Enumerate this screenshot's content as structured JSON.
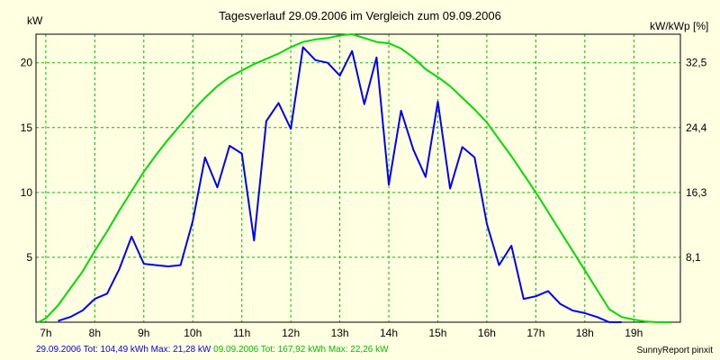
{
  "chart_data": {
    "type": "line",
    "title": "Tagesverlauf 29.09.2006 im Vergleich zum 09.09.2006",
    "ylabel_left": "kW",
    "ylabel_right": "kW/kWp [%]",
    "x_ticks": [
      "7h",
      "8h",
      "9h",
      "10h",
      "11h",
      "12h",
      "13h",
      "14h",
      "15h",
      "16h",
      "17h",
      "18h",
      "19h"
    ],
    "y_left_ticks": [
      "5",
      "10",
      "15",
      "20"
    ],
    "y_right_ticks": [
      "8,1",
      "16,3",
      "24,4",
      "32,5"
    ],
    "xlim": [
      6.8,
      19.95
    ],
    "ylim": [
      0,
      22.2
    ],
    "grid": true,
    "series": [
      {
        "name": "29.09.2006",
        "color": "#0000ff",
        "x": [
          7.25,
          7.5,
          7.75,
          8.0,
          8.25,
          8.5,
          8.75,
          9.0,
          9.25,
          9.5,
          9.75,
          10.0,
          10.25,
          10.5,
          10.75,
          11.0,
          11.25,
          11.5,
          11.75,
          12.0,
          12.25,
          12.5,
          12.75,
          13.0,
          13.25,
          13.5,
          13.75,
          14.0,
          14.25,
          14.5,
          14.75,
          15.0,
          15.25,
          15.5,
          15.75,
          16.0,
          16.25,
          16.5,
          16.75,
          17.0,
          17.25,
          17.5,
          17.75,
          18.0,
          18.25,
          18.5,
          18.75
        ],
        "values": [
          0.1,
          0.4,
          0.9,
          1.8,
          2.2,
          4.1,
          6.6,
          4.5,
          4.4,
          4.3,
          4.4,
          7.8,
          12.7,
          10.4,
          13.6,
          13.0,
          6.3,
          15.5,
          16.9,
          14.9,
          21.2,
          20.2,
          20.0,
          19.0,
          20.9,
          16.8,
          20.4,
          10.6,
          16.3,
          13.3,
          11.2,
          17.0,
          10.3,
          13.5,
          12.7,
          7.6,
          4.4,
          5.9,
          1.8,
          2.0,
          2.4,
          1.4,
          0.9,
          0.7,
          0.4,
          0.0,
          0.0
        ]
      },
      {
        "name": "09.09.2006",
        "color": "#00dd00",
        "x": [
          6.85,
          7.0,
          7.25,
          7.5,
          7.75,
          8.0,
          8.25,
          8.5,
          8.75,
          9.0,
          9.25,
          9.5,
          9.75,
          10.0,
          10.25,
          10.5,
          10.75,
          11.0,
          11.25,
          11.5,
          11.75,
          12.0,
          12.25,
          12.5,
          12.75,
          13.0,
          13.25,
          13.5,
          13.75,
          14.0,
          14.25,
          14.5,
          14.75,
          15.0,
          15.25,
          15.5,
          15.75,
          16.0,
          16.25,
          16.5,
          16.75,
          17.0,
          17.25,
          17.5,
          17.75,
          18.0,
          18.25,
          18.5,
          18.75,
          19.0,
          19.25,
          19.5,
          19.75
        ],
        "values": [
          0.0,
          0.3,
          1.3,
          2.6,
          3.9,
          5.5,
          7.0,
          8.6,
          10.1,
          11.6,
          12.9,
          14.1,
          15.2,
          16.3,
          17.3,
          18.2,
          18.9,
          19.4,
          19.9,
          20.3,
          20.7,
          21.2,
          21.6,
          21.8,
          21.9,
          22.1,
          22.2,
          21.9,
          21.6,
          21.5,
          21.1,
          20.4,
          19.5,
          18.9,
          18.2,
          17.3,
          16.4,
          15.4,
          14.1,
          12.8,
          11.4,
          10.0,
          8.5,
          7.0,
          5.5,
          4.0,
          2.5,
          1.0,
          0.4,
          0.2,
          0.05,
          0.0,
          0.0
        ]
      }
    ]
  },
  "footer": {
    "series1_text": "29.09.2006 Tot: 104,49 kWh Max: 21,28 kW",
    "series2_text": "09.09.2006 Tot: 167,92 kWh Max: 22,26 kW",
    "brand": "SunnyReport pinxit"
  },
  "colors": {
    "background": "#ffffe1",
    "plot_border": "#000000",
    "grid": "#00c000"
  }
}
